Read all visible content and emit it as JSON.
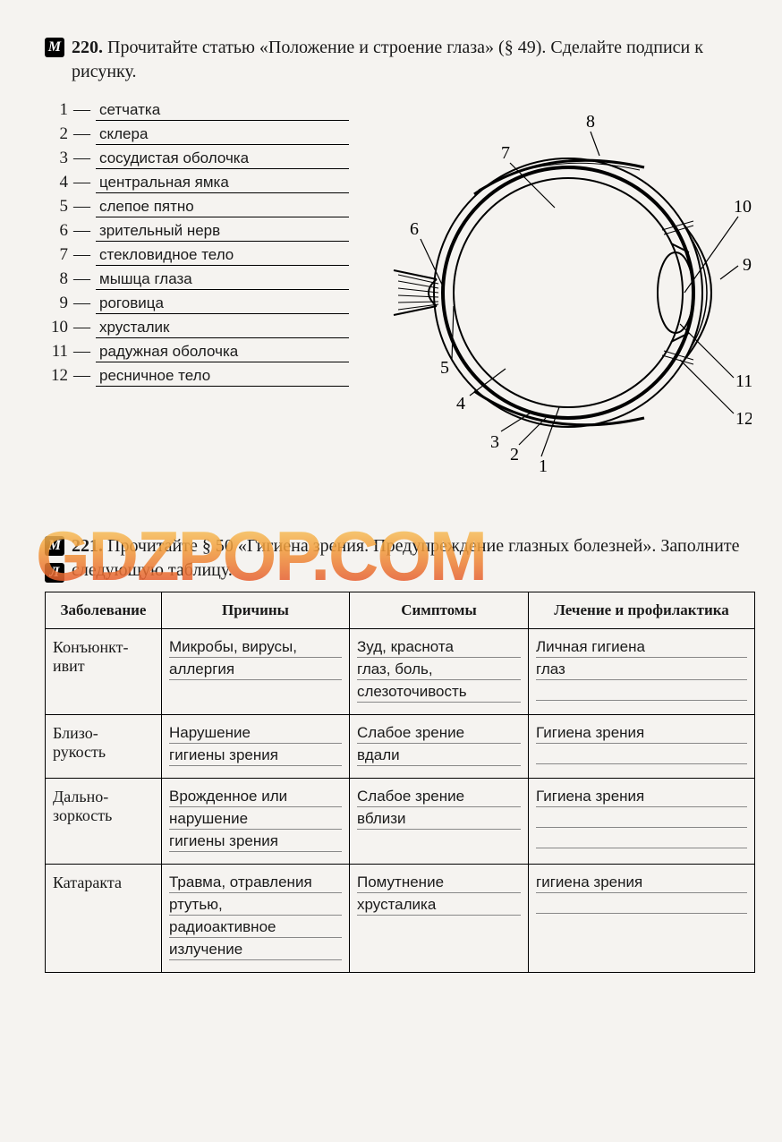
{
  "task220": {
    "marker": "М",
    "number": "220.",
    "text": "Прочитайте статью «Положение и строение глаза» (§ 49). Сделайте подписи к рисунку.",
    "labels": [
      {
        "n": "1",
        "text": "сетчатка"
      },
      {
        "n": "2",
        "text": "склера"
      },
      {
        "n": "3",
        "text": "сосудистая оболочка"
      },
      {
        "n": "4",
        "text": "центральная ямка"
      },
      {
        "n": "5",
        "text": "слепое пятно"
      },
      {
        "n": "6",
        "text": "зрительный нерв"
      },
      {
        "n": "7",
        "text": "стекловидное тело"
      },
      {
        "n": "8",
        "text": "мышца глаза"
      },
      {
        "n": "9",
        "text": "роговица"
      },
      {
        "n": "10",
        "text": "хрусталик"
      },
      {
        "n": "11",
        "text": "радужная оболочка"
      },
      {
        "n": "12",
        "text": "ресничное тело"
      }
    ],
    "diagram_numbers": [
      "1",
      "2",
      "3",
      "4",
      "5",
      "6",
      "7",
      "8",
      "9",
      "10",
      "11",
      "12"
    ]
  },
  "watermark": "GDZPOP.COM",
  "task221": {
    "marker1": "М",
    "marker2": "Л",
    "number": "221.",
    "text": "Прочитайте § 50 «Гигиена зрения. Предупреждение глазных болезней». Заполните следующую таблицу.",
    "headers": [
      "Заболевание",
      "Причины",
      "Симптомы",
      "Лечение и профилактика"
    ],
    "rows": [
      {
        "name": "Конъюнктивит",
        "cause": [
          "Микробы, вирусы,",
          "аллергия"
        ],
        "symptoms": [
          "Зуд, краснота",
          "глаз, боль,",
          "слезоточивость"
        ],
        "treat": [
          "Личная гигиена",
          "глаз",
          ""
        ]
      },
      {
        "name": "Близорукость",
        "cause": [
          "Нарушение",
          "гигиены зрения"
        ],
        "symptoms": [
          "Слабое зрение",
          "вдали"
        ],
        "treat": [
          "Гигиена зрения",
          ""
        ]
      },
      {
        "name": "Дальнозоркость",
        "cause": [
          "Врожденное или",
          "нарушение",
          "гигиены зрения"
        ],
        "symptoms": [
          "Слабое зрение",
          "вблизи"
        ],
        "treat": [
          "Гигиена зрения",
          "",
          ""
        ]
      },
      {
        "name": "Катаракта",
        "cause": [
          "Травма, отравления",
          "ртутью,",
          "радиоактивное",
          "излучение"
        ],
        "symptoms": [
          "Помутнение",
          "хрусталика"
        ],
        "treat": [
          "гигиена зрения",
          ""
        ]
      }
    ]
  },
  "colors": {
    "page_bg": "#f5f3f0",
    "text": "#1a1a1a",
    "border": "#000000",
    "watermark_gradient": [
      "#f9d976",
      "#f39f3c",
      "#e1402a"
    ]
  },
  "diagram": {
    "type": "anatomical-diagram",
    "stroke": "#000000",
    "stroke_width": 1.5,
    "callout_font_size": 18
  }
}
